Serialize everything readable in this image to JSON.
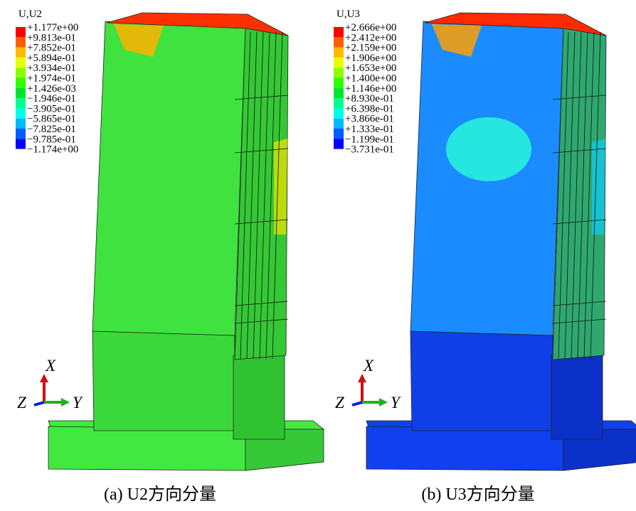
{
  "panels": [
    {
      "legend": {
        "title": "U,U2",
        "labels": [
          "+1.177e+00",
          "+9.813e-01",
          "+7.852e-01",
          "+5.894e-01",
          "+3.934e-01",
          "+1.974e-01",
          "+1.426e-03",
          "−1.946e-01",
          "−3.905e-01",
          "−5.865e-01",
          "−7.825e-01",
          "−9.785e-01",
          "−1.174e+00"
        ]
      },
      "triad": {
        "x": "X",
        "y": "Y",
        "z": "Z"
      },
      "caption": "(a) U2方向分量"
    },
    {
      "legend": {
        "title": "U,U3",
        "labels": [
          "+2.666e+00",
          "+2.412e+00",
          "+2.159e+00",
          "+1.906e+00",
          "+1.653e+00",
          "+1.400e+00",
          "+1.146e+00",
          "+8.930e-01",
          "+6.398e-01",
          "+3.866e-01",
          "+1.333e-01",
          "−1.199e-01",
          "−3.731e-01"
        ]
      },
      "triad": {
        "x": "X",
        "y": "Y",
        "z": "Z"
      },
      "caption": "(b) U3方向分量"
    }
  ]
}
